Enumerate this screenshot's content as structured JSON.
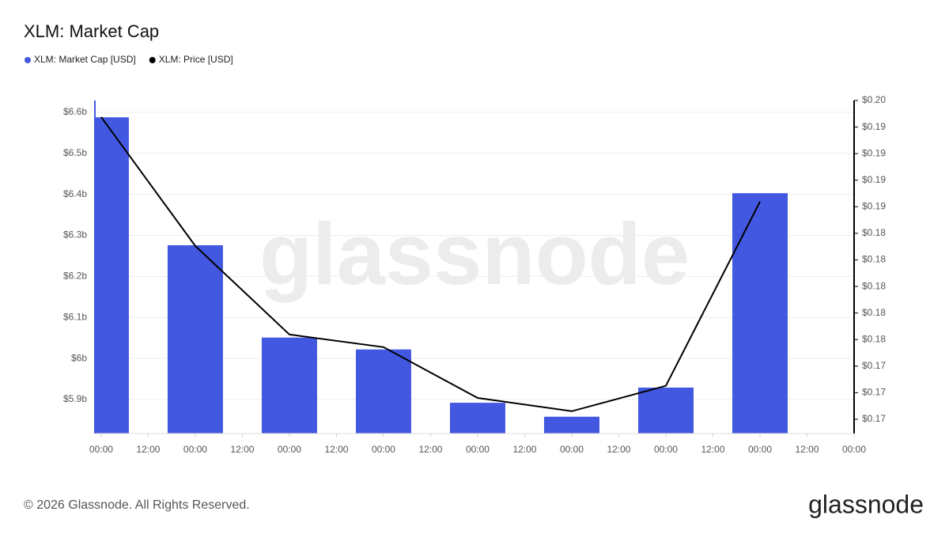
{
  "chart_data": {
    "type": "bar-line",
    "title": "XLM: Market Cap",
    "watermark": "glassnode",
    "footer": "© 2026 Glassnode. All Rights Reserved.",
    "logo": "glassnode",
    "x": [
      0,
      24,
      48,
      72,
      96,
      120,
      144,
      168
    ],
    "xlim": [
      -1.6,
      192
    ],
    "xticks": [
      {
        "value": 0,
        "label": "00:00"
      },
      {
        "value": 12,
        "label": "12:00"
      },
      {
        "value": 24,
        "label": "00:00"
      },
      {
        "value": 36,
        "label": "12:00"
      },
      {
        "value": 48,
        "label": "00:00"
      },
      {
        "value": 60,
        "label": "12:00"
      },
      {
        "value": 72,
        "label": "00:00"
      },
      {
        "value": 84,
        "label": "12:00"
      },
      {
        "value": 96,
        "label": "00:00"
      },
      {
        "value": 108,
        "label": "12:00"
      },
      {
        "value": 120,
        "label": "00:00"
      },
      {
        "value": 132,
        "label": "12:00"
      },
      {
        "value": 144,
        "label": "00:00"
      },
      {
        "value": 156,
        "label": "12:00"
      },
      {
        "value": 168,
        "label": "00:00"
      },
      {
        "value": 180,
        "label": "12:00"
      },
      {
        "value": 192,
        "label": "00:00"
      }
    ],
    "ylim": [
      5.817,
      6.629
    ],
    "yticks": [
      {
        "value": 5.9,
        "label": "$5.9b"
      },
      {
        "value": 6.0,
        "label": "$6b"
      },
      {
        "value": 6.1,
        "label": "$6.1b"
      },
      {
        "value": 6.2,
        "label": "$6.2b"
      },
      {
        "value": 6.3,
        "label": "$6.3b"
      },
      {
        "value": 6.4,
        "label": "$6.4b"
      },
      {
        "value": 6.5,
        "label": "$6.5b"
      },
      {
        "value": 6.6,
        "label": "$6.6b"
      }
    ],
    "y2lim": [
      0.16866,
      0.2
    ],
    "y2ticks": [
      {
        "value": 0.17,
        "label": "$0.17"
      },
      {
        "value": 0.1725,
        "label": "$0.17"
      },
      {
        "value": 0.175,
        "label": "$0.17"
      },
      {
        "value": 0.1775,
        "label": "$0.18"
      },
      {
        "value": 0.18,
        "label": "$0.18"
      },
      {
        "value": 0.1825,
        "label": "$0.18"
      },
      {
        "value": 0.185,
        "label": "$0.18"
      },
      {
        "value": 0.1875,
        "label": "$0.18"
      },
      {
        "value": 0.19,
        "label": "$0.19"
      },
      {
        "value": 0.1925,
        "label": "$0.19"
      },
      {
        "value": 0.195,
        "label": "$0.19"
      },
      {
        "value": 0.1975,
        "label": "$0.19"
      },
      {
        "value": 0.2,
        "label": "$0.20"
      }
    ],
    "grid": true,
    "series": [
      {
        "name": "XLM: Market Cap [USD]",
        "color": "#4358e0",
        "kind": "bar",
        "values": [
          6.588,
          6.276,
          6.051,
          6.022,
          5.892,
          5.858,
          5.929,
          6.403
        ]
      },
      {
        "name": "XLM: Price [USD]",
        "color": "#000000",
        "kind": "line",
        "axis": "y2",
        "values": [
          0.19844,
          0.18631,
          0.17798,
          0.17679,
          0.17201,
          0.17076,
          0.17315,
          0.19048
        ]
      }
    ]
  }
}
